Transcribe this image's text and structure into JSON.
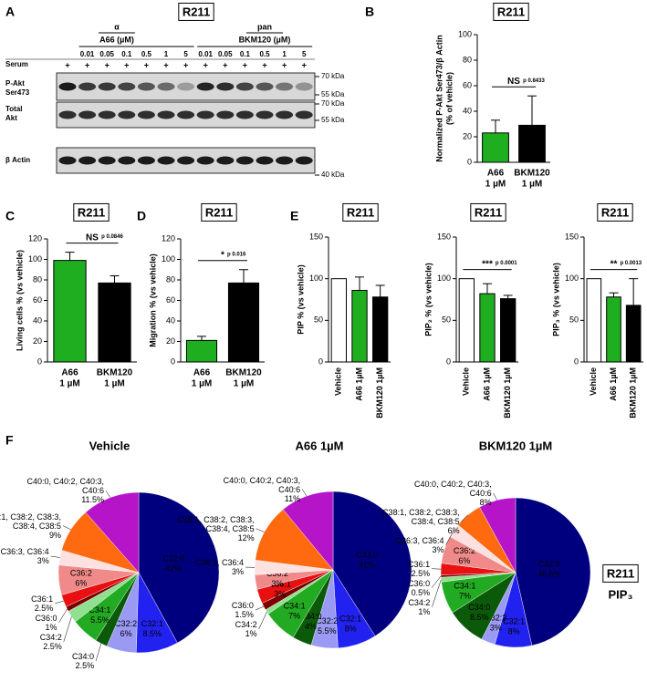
{
  "blot": {
    "panel": "A",
    "title": "R211",
    "a66_class": "α",
    "a66_label": "A66 (µM)",
    "bkm_class": "pan",
    "bkm_label": "BKM120 (µM)",
    "a66_concentrations": [
      "0.01",
      "0.05",
      "0.1",
      "0.5",
      "1",
      "5"
    ],
    "bkm_concentrations": [
      "0.01",
      "0.05",
      "0.1",
      "0.5",
      "1",
      "5"
    ],
    "serum_label": "Serum",
    "serum": [
      "+",
      "+",
      "+",
      "+",
      "+",
      "+",
      "+",
      "+",
      "+",
      "+",
      "+",
      "+",
      "+"
    ],
    "row_labels": [
      [
        "P-Akt",
        "Ser473"
      ],
      [
        "Total",
        "Akt"
      ],
      [
        "β Actin"
      ]
    ],
    "markers": [
      "70 kDa",
      "55 kDa",
      "70 kDa",
      "55 kDa",
      "40 kDa"
    ]
  },
  "chart_data": [
    {
      "type": "bar",
      "panel": "B",
      "title": "R211",
      "ylabel": [
        "Normalized P-Akt Ser473/β Actin",
        "(% of vehicle)"
      ],
      "categories": [
        "A66",
        "BKM120"
      ],
      "category_sublabels": [
        "1 µM",
        "1 µM"
      ],
      "values": [
        23,
        29
      ],
      "errors": [
        10,
        23
      ],
      "colors": [
        "#1fae1f",
        "#000000"
      ],
      "ylim": [
        0,
        100
      ],
      "yticks": [
        0,
        20,
        40,
        60,
        80,
        100
      ],
      "annotation": "NS",
      "p_value": "p 0.8433"
    },
    {
      "type": "bar",
      "panel": "C",
      "title": "R211",
      "ylabel": [
        "Living cells % (vs vehicle)"
      ],
      "categories": [
        "A66",
        "BKM120"
      ],
      "category_sublabels": [
        "1 µM",
        "1 µM"
      ],
      "values": [
        99,
        77
      ],
      "errors": [
        8,
        7
      ],
      "colors": [
        "#1fae1f",
        "#000000"
      ],
      "ylim": [
        0,
        120
      ],
      "yticks": [
        0,
        20,
        40,
        60,
        80,
        100,
        120
      ],
      "annotation": "NS",
      "p_value": "p 0.0846"
    },
    {
      "type": "bar",
      "panel": "D",
      "title": "R211",
      "ylabel": [
        "Migration % (vs vehicle)"
      ],
      "categories": [
        "A66",
        "BKM120"
      ],
      "category_sublabels": [
        "1 µM",
        "1 µM"
      ],
      "values": [
        21,
        77
      ],
      "errors": [
        4,
        13
      ],
      "colors": [
        "#1fae1f",
        "#000000"
      ],
      "ylim": [
        0,
        120
      ],
      "yticks": [
        0,
        20,
        40,
        60,
        80,
        100,
        120
      ],
      "annotation": "*",
      "p_value": "p 0.016"
    },
    {
      "type": "bar",
      "panel": "E",
      "title": "R211",
      "ylabel": [
        "PIP % (vs vehicle)"
      ],
      "categories": [
        "Vehicle",
        "A66 1µM",
        "BKM120 1µM"
      ],
      "values": [
        100,
        86,
        78
      ],
      "errors": [
        0,
        16,
        14
      ],
      "colors": [
        "#ffffff",
        "#1fae1f",
        "#000000"
      ],
      "ylim": [
        0,
        150
      ],
      "yticks": [
        0,
        50,
        100,
        150
      ]
    },
    {
      "type": "bar",
      "title": "R211",
      "ylabel": [
        "PIP₂ % (vs vehicle)"
      ],
      "categories": [
        "Vehicle",
        "A66 1µM",
        "BKM120 1µM"
      ],
      "values": [
        100,
        82,
        76
      ],
      "errors": [
        0,
        12,
        4
      ],
      "colors": [
        "#ffffff",
        "#1fae1f",
        "#000000"
      ],
      "ylim": [
        0,
        150
      ],
      "yticks": [
        0,
        50,
        100,
        150
      ],
      "annotation": "***",
      "p_value": "p 0.0001"
    },
    {
      "type": "bar",
      "title": "R211",
      "ylabel": [
        "PIP₃ % (vs vehicle)"
      ],
      "categories": [
        "Vehicle",
        "A66 1µM",
        "BKM120 1µM"
      ],
      "values": [
        100,
        78,
        68
      ],
      "errors": [
        0,
        5,
        32
      ],
      "colors": [
        "#ffffff",
        "#1fae1f",
        "#000000"
      ],
      "ylim": [
        0,
        150
      ],
      "yticks": [
        0,
        50,
        100,
        150
      ],
      "annotation": "**",
      "p_value": "p 0.0013"
    },
    {
      "type": "pie",
      "panel": "F",
      "title": "Vehicle",
      "labels": [
        "C32:0",
        "C32:1",
        "C32:2",
        "C34:0",
        "C34:1",
        "C34:2",
        "C36:0",
        "C36:1",
        "C36:2",
        "C36:3, C36:4",
        "C38:1, C38:2, C38:3, C38:4, C38:5",
        "C40:0, C40:2, C40:3, C40:6"
      ],
      "values": [
        42,
        8.5,
        6,
        2.5,
        5.5,
        2.5,
        1,
        2.5,
        6,
        3,
        9,
        11.5
      ],
      "value_labels": [
        "42%",
        "8.5%",
        "6%",
        "2.5%",
        "5.5%",
        "2.5%",
        "1%",
        "2.5%",
        "6%",
        "3%",
        "9%",
        "11.5%"
      ],
      "colors": [
        "#00007f",
        "#2222f0",
        "#9a9af5",
        "#0a5a0a",
        "#22aa22",
        "#8fe08f",
        "#7a0000",
        "#e81010",
        "#f08a8a",
        "#fde0e0",
        "#ff6a10",
        "#b514c8"
      ]
    },
    {
      "type": "pie",
      "title": "A66 1µM",
      "labels": [
        "C32:0",
        "C32:1",
        "C32:2",
        "C34:0",
        "C34:1",
        "C34:2",
        "C36:0",
        "C36:1",
        "C36:2",
        "C36:3, C36:4",
        "C38:1, C38:2, C38:3, C38:4, C38:5",
        "C40:0, C40:2, C40:3, C40:6"
      ],
      "values": [
        41,
        8,
        5.5,
        4,
        7,
        1,
        1.5,
        3,
        3,
        3,
        12,
        11
      ],
      "value_labels": [
        "41%",
        "8%",
        "5.5%",
        "4%",
        "7%",
        "1%",
        "1.5%",
        "3%",
        "3%",
        "3%",
        "12%",
        "11%"
      ],
      "colors": [
        "#00007f",
        "#2222f0",
        "#9a9af5",
        "#0a5a0a",
        "#22aa22",
        "#8fe08f",
        "#7a0000",
        "#e81010",
        "#f08a8a",
        "#fde0e0",
        "#ff6a10",
        "#b514c8"
      ]
    },
    {
      "type": "pie",
      "title": "BKM120 1µM",
      "labels": [
        "C32:0",
        "C32:1",
        "C32:2",
        "C34:0",
        "C34:1",
        "C34:2",
        "C36:0",
        "C36:1",
        "C36:2",
        "C36:3, C36:4",
        "C38:1, C38:2, C38:3, C38:4, C38:5",
        "C40:0, C40:2, C40:3, C40:6"
      ],
      "values": [
        46.5,
        8,
        3,
        8.5,
        7,
        1,
        0.5,
        2.5,
        6,
        3,
        6,
        8
      ],
      "value_labels": [
        "46.5%",
        "8%",
        "3%",
        "8.5%",
        "7%",
        "1%",
        "0.5%",
        "2.5%",
        "6%",
        "3%",
        "6%",
        "8%"
      ],
      "colors": [
        "#00007f",
        "#2222f0",
        "#9a9af5",
        "#0a5a0a",
        "#22aa22",
        "#8fe08f",
        "#7a0000",
        "#e81010",
        "#f08a8a",
        "#fde0e0",
        "#ff6a10",
        "#b514c8"
      ]
    }
  ],
  "panel_f": {
    "cell_line": "R211",
    "lipid": "PIP₃"
  }
}
